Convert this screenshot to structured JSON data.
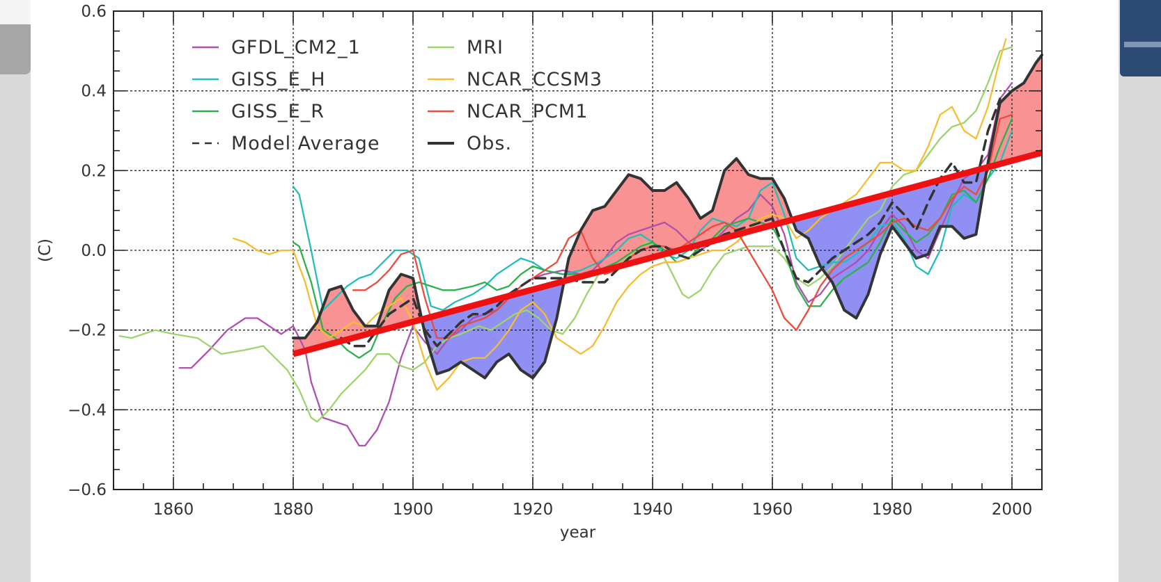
{
  "chart_data": {
    "type": "line",
    "title": "",
    "xlabel": "year",
    "ylabel": "(C)",
    "xlim": [
      1850,
      2005
    ],
    "ylim": [
      -0.6,
      0.6
    ],
    "x_ticks": [
      1860,
      1880,
      1900,
      1920,
      1940,
      1960,
      1980,
      2000
    ],
    "x_tick_labels": [
      "1860",
      "1880",
      "1900",
      "1920",
      "1940",
      "1960",
      "1980",
      "2000"
    ],
    "y_ticks": [
      -0.6,
      -0.4,
      -0.2,
      0.0,
      0.2,
      0.4,
      0.6
    ],
    "y_tick_labels": [
      "−0.6",
      "−0.4",
      "−0.2",
      "0.0",
      "0.2",
      "0.4",
      "0.6"
    ],
    "grid": true,
    "legend_position": "top-left",
    "legend": [
      {
        "label": "GFDL_CM2_1",
        "color": "#b04fb0",
        "style": "solid"
      },
      {
        "label": "MRI",
        "color": "#9ed46c",
        "style": "solid"
      },
      {
        "label": "GISS_E_H",
        "color": "#22bdb8",
        "style": "solid"
      },
      {
        "label": "NCAR_CCSM3",
        "color": "#f7bd32",
        "style": "solid"
      },
      {
        "label": "GISS_E_R",
        "color": "#2db04a",
        "style": "solid"
      },
      {
        "label": "NCAR_PCM1",
        "color": "#ee4a3a",
        "style": "solid"
      },
      {
        "label": "Model Average",
        "color": "#333333",
        "style": "dashed"
      },
      {
        "label": "Obs.",
        "color": "#333333",
        "style": "solid"
      }
    ],
    "trend_line": {
      "color": "#ee1111",
      "x": [
        1880,
        2005
      ],
      "y": [
        -0.26,
        0.245
      ]
    },
    "fill_colors": {
      "above_trend": "#f99393",
      "below_trend": "#8f8ff4"
    },
    "series": [
      {
        "name": "GFDL_CM2_1",
        "color": "#b04fb0",
        "x": [
          1861,
          1863,
          1866,
          1869,
          1872,
          1874,
          1876,
          1878,
          1880,
          1882,
          1883,
          1885,
          1887,
          1889,
          1891,
          1892,
          1894,
          1896,
          1898,
          1900,
          1902,
          1904,
          1906,
          1908,
          1910,
          1912,
          1914,
          1916,
          1918,
          1920,
          1922,
          1925,
          1928,
          1930,
          1932,
          1934,
          1936,
          1938,
          1940,
          1942,
          1944,
          1946,
          1948,
          1950,
          1952,
          1954,
          1956,
          1958,
          1960,
          1962,
          1964,
          1966,
          1968,
          1970,
          1972,
          1974,
          1976,
          1978,
          1980,
          1982,
          1984,
          1986,
          1988,
          1990,
          1992,
          1994,
          1996,
          1998,
          2000
        ],
        "y": [
          -0.295,
          -0.295,
          -0.25,
          -0.2,
          -0.17,
          -0.17,
          -0.19,
          -0.21,
          -0.19,
          -0.25,
          -0.33,
          -0.42,
          -0.43,
          -0.44,
          -0.49,
          -0.49,
          -0.45,
          -0.38,
          -0.27,
          -0.19,
          -0.23,
          -0.26,
          -0.22,
          -0.2,
          -0.17,
          -0.16,
          -0.15,
          -0.12,
          -0.09,
          -0.07,
          -0.06,
          -0.05,
          -0.06,
          -0.05,
          -0.02,
          0.02,
          0.04,
          0.05,
          0.06,
          0.07,
          0.05,
          0.02,
          0.0,
          0.02,
          0.05,
          0.08,
          0.1,
          0.14,
          0.11,
          0.04,
          -0.08,
          -0.13,
          -0.11,
          -0.07,
          -0.05,
          -0.03,
          0.0,
          0.05,
          0.09,
          0.06,
          0.0,
          -0.02,
          0.05,
          0.12,
          0.18,
          0.2,
          0.24,
          0.38,
          0.42
        ]
      },
      {
        "name": "MRI",
        "color": "#9ed46c",
        "x": [
          1851,
          1853,
          1855,
          1857,
          1860,
          1864,
          1866,
          1868,
          1872,
          1875,
          1877,
          1879,
          1881,
          1883,
          1884,
          1886,
          1888,
          1890,
          1892,
          1894,
          1896,
          1898,
          1900,
          1902,
          1904,
          1906,
          1908,
          1911,
          1913,
          1915,
          1917,
          1919,
          1921,
          1923,
          1925,
          1927,
          1929,
          1931,
          1933,
          1935,
          1937,
          1939,
          1941,
          1943,
          1945,
          1946,
          1948,
          1950,
          1952,
          1954,
          1956,
          1958,
          1960,
          1962,
          1964,
          1966,
          1968,
          1970,
          1972,
          1974,
          1976,
          1978,
          1980,
          1982,
          1984,
          1986,
          1988,
          1990,
          1992,
          1994,
          1996,
          1998,
          2000
        ],
        "y": [
          -0.215,
          -0.22,
          -0.21,
          -0.2,
          -0.21,
          -0.22,
          -0.24,
          -0.26,
          -0.25,
          -0.24,
          -0.27,
          -0.3,
          -0.35,
          -0.42,
          -0.43,
          -0.4,
          -0.36,
          -0.33,
          -0.3,
          -0.26,
          -0.26,
          -0.29,
          -0.3,
          -0.28,
          -0.24,
          -0.22,
          -0.21,
          -0.19,
          -0.2,
          -0.18,
          -0.16,
          -0.15,
          -0.17,
          -0.2,
          -0.21,
          -0.17,
          -0.11,
          -0.06,
          -0.04,
          -0.03,
          0.0,
          0.02,
          0.01,
          -0.05,
          -0.11,
          -0.12,
          -0.1,
          -0.05,
          -0.01,
          0.0,
          0.01,
          0.01,
          0.01,
          -0.02,
          -0.07,
          -0.09,
          -0.07,
          -0.04,
          0.0,
          0.04,
          0.08,
          0.1,
          0.16,
          0.19,
          0.2,
          0.24,
          0.28,
          0.31,
          0.32,
          0.35,
          0.42,
          0.5,
          0.51
        ]
      },
      {
        "name": "GISS_E_H",
        "color": "#22bdb8",
        "x": [
          1880,
          1881,
          1883,
          1885,
          1887,
          1889,
          1891,
          1893,
          1895,
          1897,
          1899,
          1901,
          1903,
          1905,
          1907,
          1910,
          1912,
          1914,
          1916,
          1918,
          1920,
          1922,
          1925,
          1928,
          1931,
          1934,
          1936,
          1938,
          1940,
          1942,
          1944,
          1946,
          1948,
          1950,
          1952,
          1954,
          1956,
          1958,
          1960,
          1962,
          1964,
          1966,
          1968,
          1970,
          1972,
          1974,
          1976,
          1978,
          1980,
          1982,
          1984,
          1986,
          1988,
          1990,
          1992,
          1994,
          1996,
          1998,
          2000
        ],
        "y": [
          0.16,
          0.14,
          0.0,
          -0.15,
          -0.12,
          -0.09,
          -0.07,
          -0.06,
          -0.03,
          0.0,
          0.0,
          -0.02,
          -0.14,
          -0.15,
          -0.13,
          -0.11,
          -0.09,
          -0.06,
          -0.04,
          -0.02,
          -0.03,
          -0.05,
          -0.06,
          -0.05,
          -0.03,
          0.0,
          0.03,
          0.04,
          0.02,
          -0.01,
          -0.02,
          0.0,
          0.05,
          0.08,
          0.07,
          0.06,
          0.08,
          0.15,
          0.17,
          0.09,
          -0.02,
          -0.05,
          -0.04,
          -0.03,
          -0.03,
          -0.01,
          0.02,
          0.06,
          0.07,
          0.03,
          -0.04,
          -0.06,
          0.0,
          0.11,
          0.14,
          0.12,
          0.18,
          0.22,
          0.3
        ]
      },
      {
        "name": "GISS_E_R",
        "color": "#2db04a",
        "x": [
          1880,
          1881,
          1883,
          1885,
          1887,
          1889,
          1891,
          1893,
          1895,
          1897,
          1899,
          1901,
          1903,
          1905,
          1907,
          1910,
          1912,
          1914,
          1916,
          1918,
          1920,
          1922,
          1925,
          1928,
          1931,
          1934,
          1936,
          1938,
          1940,
          1942,
          1944,
          1946,
          1948,
          1950,
          1952,
          1954,
          1956,
          1958,
          1960,
          1962,
          1964,
          1966,
          1968,
          1970,
          1972,
          1974,
          1976,
          1978,
          1980,
          1982,
          1984,
          1986,
          1988,
          1990,
          1992,
          1994,
          1996,
          1998,
          2000
        ],
        "y": [
          0.02,
          0.01,
          -0.08,
          -0.2,
          -0.22,
          -0.25,
          -0.27,
          -0.25,
          -0.18,
          -0.12,
          -0.09,
          -0.08,
          -0.09,
          -0.1,
          -0.1,
          -0.09,
          -0.08,
          -0.1,
          -0.09,
          -0.06,
          -0.04,
          -0.05,
          -0.06,
          -0.06,
          -0.05,
          -0.03,
          -0.01,
          0.01,
          0.02,
          0.0,
          -0.03,
          -0.02,
          0.01,
          0.03,
          0.06,
          0.07,
          0.08,
          0.07,
          0.06,
          0.0,
          -0.09,
          -0.14,
          -0.14,
          -0.1,
          -0.07,
          -0.05,
          -0.03,
          0.02,
          0.08,
          0.05,
          0.02,
          0.04,
          0.08,
          0.14,
          0.15,
          0.12,
          0.18,
          0.26,
          0.33
        ]
      },
      {
        "name": "NCAR_CCSM3",
        "color": "#f7bd32",
        "x": [
          1870,
          1872,
          1874,
          1876,
          1878,
          1880,
          1882,
          1884,
          1886,
          1888,
          1890,
          1892,
          1894,
          1896,
          1898,
          1900,
          1902,
          1904,
          1906,
          1908,
          1910,
          1912,
          1914,
          1916,
          1918,
          1920,
          1922,
          1924,
          1926,
          1928,
          1930,
          1932,
          1934,
          1936,
          1938,
          1940,
          1942,
          1944,
          1946,
          1948,
          1950,
          1952,
          1954,
          1956,
          1958,
          1960,
          1962,
          1964,
          1966,
          1968,
          1970,
          1972,
          1974,
          1976,
          1978,
          1980,
          1982,
          1984,
          1986,
          1988,
          1990,
          1992,
          1994,
          1996,
          1998,
          1999
        ],
        "y": [
          0.03,
          0.02,
          0.0,
          -0.01,
          0.0,
          0.0,
          -0.08,
          -0.19,
          -0.22,
          -0.2,
          -0.18,
          -0.19,
          -0.16,
          -0.14,
          -0.12,
          -0.18,
          -0.28,
          -0.35,
          -0.32,
          -0.28,
          -0.27,
          -0.27,
          -0.24,
          -0.2,
          -0.15,
          -0.13,
          -0.16,
          -0.22,
          -0.24,
          -0.26,
          -0.24,
          -0.19,
          -0.13,
          -0.09,
          -0.06,
          -0.04,
          -0.03,
          -0.03,
          -0.02,
          -0.01,
          0.0,
          0.0,
          0.02,
          0.05,
          0.08,
          0.09,
          0.08,
          0.03,
          0.05,
          0.08,
          0.1,
          0.12,
          0.14,
          0.18,
          0.22,
          0.22,
          0.2,
          0.2,
          0.26,
          0.34,
          0.36,
          0.3,
          0.28,
          0.36,
          0.48,
          0.53
        ]
      },
      {
        "name": "NCAR_PCM1",
        "color": "#ee4a3a",
        "x": [
          1890,
          1892,
          1894,
          1896,
          1898,
          1900,
          1902,
          1904,
          1906,
          1908,
          1910,
          1912,
          1914,
          1916,
          1918,
          1920,
          1922,
          1924,
          1926,
          1928,
          1930,
          1932,
          1934,
          1936,
          1938,
          1940,
          1942,
          1944,
          1946,
          1948,
          1950,
          1952,
          1954,
          1956,
          1958,
          1960,
          1962,
          1964,
          1966,
          1968,
          1970,
          1972,
          1974,
          1976,
          1978,
          1980,
          1982,
          1984,
          1986,
          1988,
          1990,
          1992,
          1994,
          1996,
          1998,
          2000
        ],
        "y": [
          -0.1,
          -0.1,
          -0.08,
          -0.05,
          -0.01,
          0.0,
          -0.12,
          -0.22,
          -0.22,
          -0.19,
          -0.18,
          -0.17,
          -0.15,
          -0.12,
          -0.09,
          -0.07,
          -0.05,
          -0.03,
          0.03,
          0.05,
          -0.02,
          -0.06,
          -0.05,
          -0.02,
          0.0,
          0.01,
          0.01,
          0.0,
          0.02,
          0.04,
          0.06,
          0.07,
          0.05,
          0.0,
          -0.05,
          -0.1,
          -0.17,
          -0.2,
          -0.15,
          -0.09,
          -0.05,
          -0.02,
          0.0,
          0.02,
          0.04,
          0.07,
          0.08,
          0.06,
          0.05,
          0.08,
          0.13,
          0.16,
          0.14,
          0.2,
          0.33,
          0.34
        ]
      },
      {
        "name": "Model Average",
        "color": "#333333",
        "dash": true,
        "x": [
          1888,
          1890,
          1892,
          1894,
          1896,
          1898,
          1900,
          1902,
          1904,
          1906,
          1908,
          1910,
          1912,
          1914,
          1916,
          1918,
          1920,
          1922,
          1924,
          1926,
          1928,
          1930,
          1932,
          1934,
          1936,
          1938,
          1940,
          1942,
          1944,
          1946,
          1948,
          1950,
          1952,
          1954,
          1956,
          1958,
          1960,
          1962,
          1964,
          1966,
          1968,
          1970,
          1972,
          1974,
          1976,
          1978,
          1980,
          1982,
          1984,
          1986,
          1988,
          1990,
          1992,
          1994,
          1996,
          1998
        ],
        "y": [
          -0.22,
          -0.24,
          -0.24,
          -0.2,
          -0.16,
          -0.14,
          -0.12,
          -0.2,
          -0.24,
          -0.21,
          -0.18,
          -0.16,
          -0.16,
          -0.14,
          -0.11,
          -0.09,
          -0.07,
          -0.07,
          -0.07,
          -0.07,
          -0.08,
          -0.08,
          -0.08,
          -0.05,
          -0.02,
          0.0,
          0.01,
          0.01,
          -0.01,
          -0.02,
          0.0,
          0.02,
          0.04,
          0.05,
          0.06,
          0.07,
          0.08,
          0.0,
          -0.07,
          -0.08,
          -0.05,
          -0.02,
          0.0,
          0.02,
          0.04,
          0.07,
          0.12,
          0.09,
          0.05,
          0.12,
          0.18,
          0.22,
          0.17,
          0.17,
          0.3,
          0.38
        ]
      },
      {
        "name": "Obs.",
        "color": "#333333",
        "x": [
          1880,
          1882,
          1884,
          1886,
          1888,
          1890,
          1892,
          1894,
          1896,
          1898,
          1900,
          1902,
          1904,
          1906,
          1908,
          1910,
          1912,
          1914,
          1916,
          1918,
          1920,
          1922,
          1924,
          1926,
          1928,
          1930,
          1932,
          1934,
          1936,
          1938,
          1940,
          1942,
          1944,
          1946,
          1948,
          1950,
          1952,
          1954,
          1956,
          1958,
          1960,
          1962,
          1964,
          1966,
          1968,
          1970,
          1972,
          1974,
          1976,
          1978,
          1980,
          1982,
          1984,
          1986,
          1988,
          1990,
          1992,
          1994,
          1996,
          1998,
          2000,
          2002,
          2004,
          2005
        ],
        "y": [
          -0.22,
          -0.22,
          -0.18,
          -0.1,
          -0.09,
          -0.15,
          -0.19,
          -0.19,
          -0.1,
          -0.06,
          -0.07,
          -0.21,
          -0.31,
          -0.3,
          -0.28,
          -0.3,
          -0.32,
          -0.28,
          -0.26,
          -0.3,
          -0.32,
          -0.28,
          -0.17,
          -0.02,
          0.05,
          0.1,
          0.11,
          0.15,
          0.19,
          0.18,
          0.15,
          0.15,
          0.17,
          0.13,
          0.08,
          0.1,
          0.2,
          0.23,
          0.19,
          0.18,
          0.18,
          0.13,
          0.05,
          0.03,
          -0.04,
          -0.08,
          -0.15,
          -0.17,
          -0.11,
          -0.01,
          0.06,
          0.02,
          -0.02,
          -0.01,
          0.06,
          0.06,
          0.03,
          0.04,
          0.22,
          0.37,
          0.4,
          0.42,
          0.47,
          0.49
        ]
      }
    ]
  }
}
